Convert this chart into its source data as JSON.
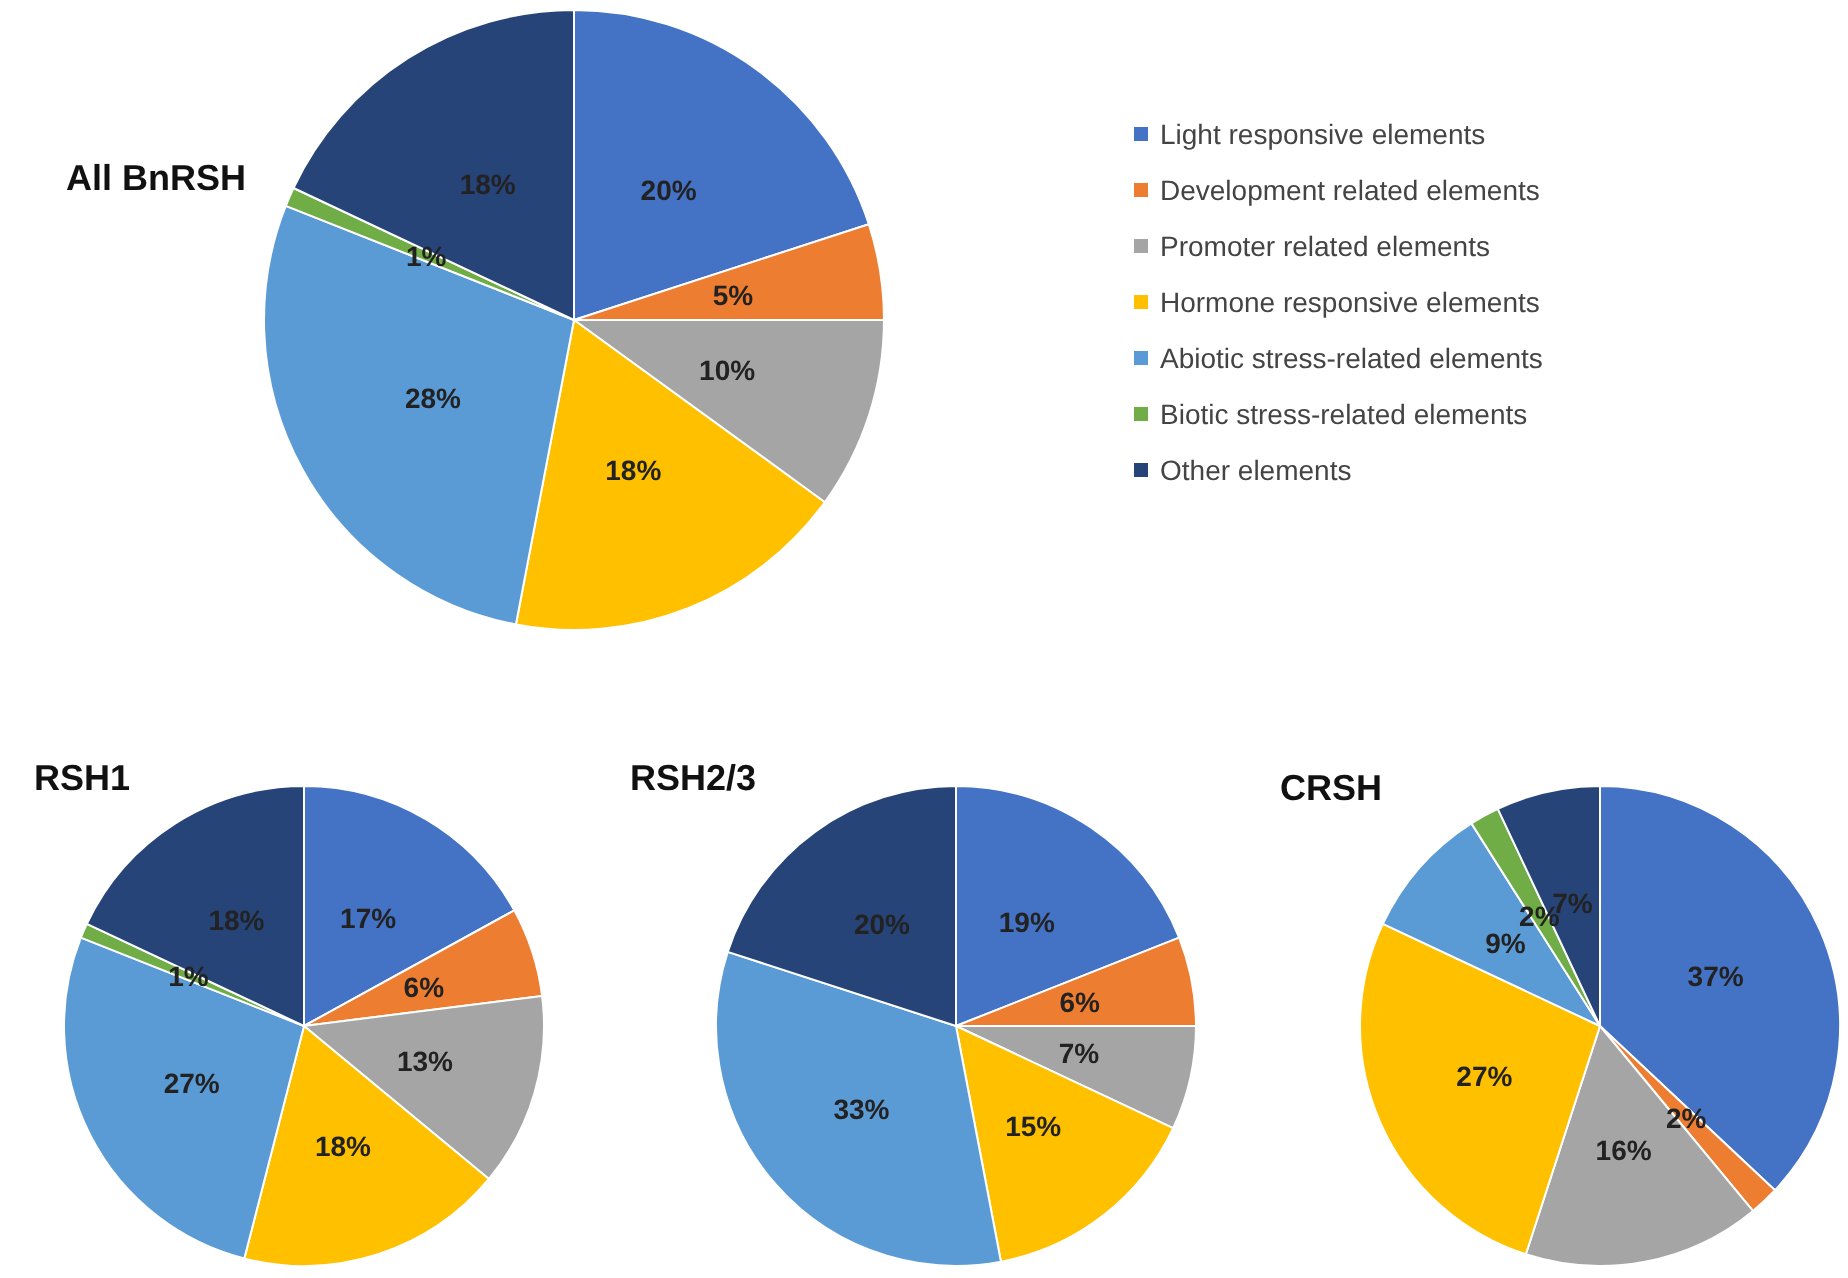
{
  "chart_data": [
    {
      "type": "pie",
      "title": "All BnRSH",
      "legend": "right",
      "categories": [
        "Light responsive elements",
        "Development related elements",
        "Promoter related elements",
        "Hormone responsive elements",
        "Abiotic stress-related elements",
        "Biotic stress-related elements",
        "Other elements"
      ],
      "values": [
        20,
        5,
        10,
        18,
        28,
        1,
        18
      ],
      "value_labels": [
        "20%",
        "5%",
        "10%",
        "18%",
        "28%",
        "1%",
        "18%"
      ],
      "colors": [
        "#4472c4",
        "#ed7d31",
        "#a5a5a5",
        "#ffc000",
        "#5b9bd5",
        "#70ad47",
        "#264478"
      ]
    },
    {
      "type": "pie",
      "title": "RSH1",
      "categories": [
        null,
        null,
        null,
        null,
        null,
        null,
        null
      ],
      "values": [
        17,
        6,
        13,
        18,
        27,
        1,
        18
      ],
      "value_labels": [
        "17%",
        "6%",
        "13%",
        "18%",
        "27%",
        "1%",
        "18%"
      ],
      "colors": [
        "#4472c4",
        "#ed7d31",
        "#a5a5a5",
        "#ffc000",
        "#5b9bd5",
        "#70ad47",
        "#264478"
      ]
    },
    {
      "type": "pie",
      "title": "RSH2/3",
      "categories": [
        null,
        null,
        null,
        null,
        null,
        null
      ],
      "values": [
        19,
        6,
        7,
        15,
        33,
        20
      ],
      "value_labels": [
        "19%",
        "6%",
        "7%",
        "15%",
        "33%",
        "20%"
      ],
      "colors": [
        "#4472c4",
        "#ed7d31",
        "#a5a5a5",
        "#ffc000",
        "#5b9bd5",
        "#264478"
      ]
    },
    {
      "type": "pie",
      "title": "CRSH",
      "categories": [
        null,
        null,
        null,
        null,
        null,
        null,
        null
      ],
      "values": [
        37,
        2,
        16,
        27,
        9,
        2,
        7
      ],
      "value_labels": [
        "37%",
        "2%",
        "16%",
        "27%",
        "9%",
        "2%",
        "7%"
      ],
      "colors": [
        "#4472c4",
        "#ed7d31",
        "#a5a5a5",
        "#ffc000",
        "#5b9bd5",
        "#70ad47",
        "#264478"
      ]
    }
  ]
}
